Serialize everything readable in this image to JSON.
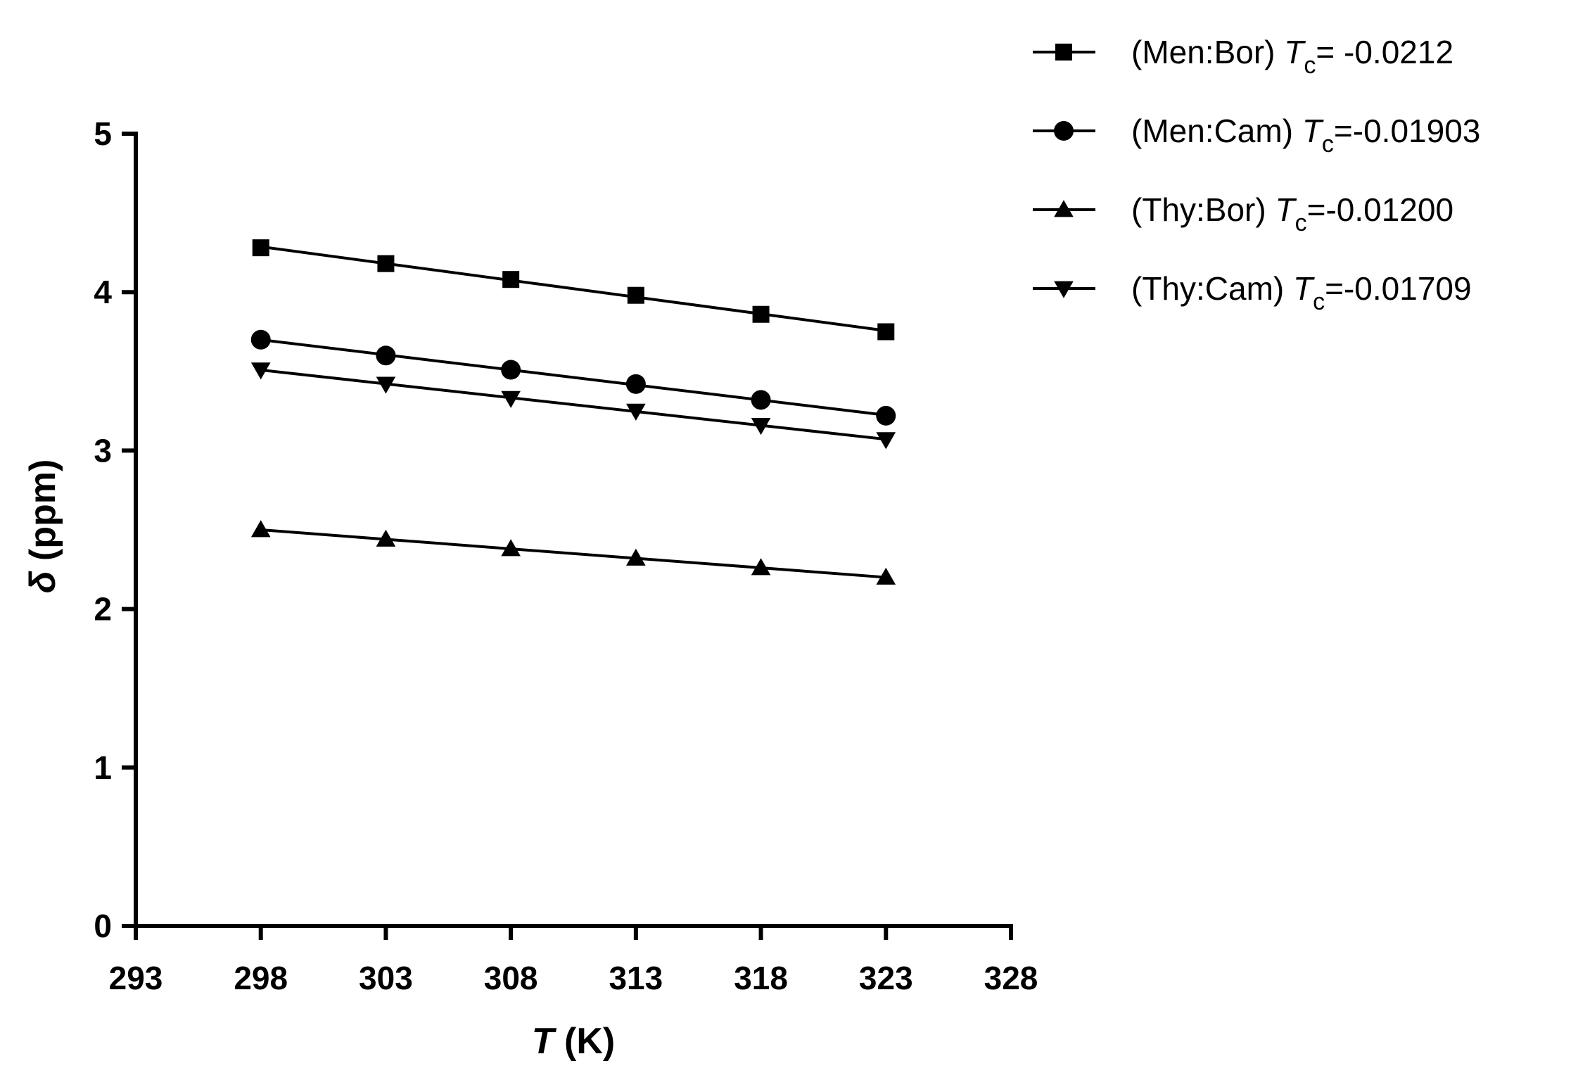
{
  "chart_data": {
    "type": "line",
    "title": "",
    "xlabel": {
      "italic": "T",
      "rest": " (K)"
    },
    "ylabel": {
      "symbol": "δ",
      "rest": " (ppm)"
    },
    "xlim": [
      293,
      328
    ],
    "ylim": [
      0,
      5
    ],
    "xticks": [
      "293",
      "298",
      "303",
      "308",
      "313",
      "318",
      "323",
      "328"
    ],
    "yticks": [
      "0",
      "1",
      "2",
      "3",
      "4",
      "5"
    ],
    "grid": false,
    "legend_position": "top-right",
    "x": [
      298,
      303,
      308,
      313,
      318,
      323
    ],
    "series": [
      {
        "name": "(Men:Bor)",
        "tc_symbol": "T",
        "tc_sub": "c",
        "tc_value": "= -0.0212",
        "marker": "square",
        "values": [
          4.28,
          4.18,
          4.08,
          3.98,
          3.86,
          3.75
        ]
      },
      {
        "name": "(Men:Cam)",
        "tc_symbol": "T",
        "tc_sub": "c",
        "tc_value": "=-0.01903",
        "marker": "circle",
        "values": [
          3.7,
          3.6,
          3.51,
          3.42,
          3.32,
          3.22
        ]
      },
      {
        "name": "(Thy:Bor)",
        "tc_symbol": "T",
        "tc_sub": "c",
        "tc_value": "=-0.01200",
        "marker": "triangle-up",
        "values": [
          2.5,
          2.44,
          2.38,
          2.32,
          2.26,
          2.2
        ]
      },
      {
        "name": "(Thy:Cam)",
        "tc_symbol": "T",
        "tc_sub": "c",
        "tc_value": "=-0.01709",
        "marker": "triangle-down",
        "values": [
          3.51,
          3.42,
          3.33,
          3.25,
          3.16,
          3.07
        ]
      }
    ],
    "colors": {
      "line": "#000000",
      "marker": "#000000",
      "background": "#ffffff"
    }
  }
}
